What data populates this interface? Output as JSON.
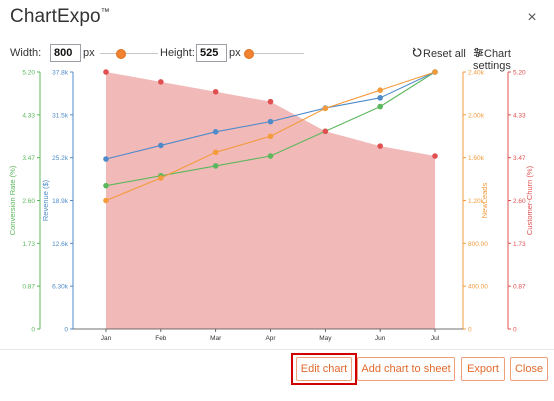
{
  "app": {
    "title": "ChartExpo",
    "trademark": "™",
    "close_glyph": "×"
  },
  "toolbar": {
    "width_label": "Width:",
    "width_value": "800",
    "width_unit": "px",
    "height_label": "Height:",
    "height_value": "525",
    "height_unit": "px",
    "reset_label": "Reset all",
    "settings_label": "Chart settings",
    "reset_icon": "reset-icon",
    "settings_icon": "sliders-icon"
  },
  "colors": {
    "green": "#5cb85c",
    "blue": "#4f8bc9",
    "orange": "#f39b3d",
    "red": "#e05050",
    "area_fill": "#f2b9b9",
    "accent": "#e26a2c",
    "highlight": "#d00000"
  },
  "chart_data": {
    "type": "line",
    "categories": [
      "Jan",
      "Feb",
      "Mar",
      "Apr",
      "May",
      "Jun",
      "Jul"
    ],
    "series": [
      {
        "name": "Conversion Rate (%)",
        "axis": "conv",
        "kind": "line",
        "values": [
          2.9,
          3.1,
          3.3,
          3.5,
          4.0,
          4.5,
          5.2
        ]
      },
      {
        "name": "Revenue ($)",
        "axis": "rev",
        "kind": "line",
        "values": [
          25000,
          27000,
          29000,
          30500,
          32500,
          34000,
          37800
        ]
      },
      {
        "name": "NewLeads",
        "axis": "leads",
        "kind": "line",
        "values": [
          1200,
          1410,
          1650,
          1800,
          2060,
          2230,
          2400
        ]
      },
      {
        "name": "Customer-Churn (%)",
        "axis": "churn",
        "kind": "area",
        "values": [
          5.2,
          5.0,
          4.8,
          4.6,
          4.0,
          3.7,
          3.5
        ]
      }
    ],
    "axes": [
      {
        "id": "conv",
        "label": "Conversion Rate (%)",
        "min": 0,
        "max": 5.2,
        "ticks": [
          "0",
          "0.87",
          "1.73",
          "2.60",
          "3.47",
          "4.33",
          "5.20"
        ],
        "color": "#5cb85c",
        "side": "left"
      },
      {
        "id": "rev",
        "label": "Revenue ($)",
        "min": 0,
        "max": 37800,
        "ticks": [
          "0",
          "6.30k",
          "12.6k",
          "18.9k",
          "25.2k",
          "31.5k",
          "37.8k"
        ],
        "color": "#4f8bc9",
        "side": "left"
      },
      {
        "id": "leads",
        "label": "NewLeads",
        "min": 0,
        "max": 2400,
        "ticks": [
          "0",
          "400.00",
          "800.00",
          "1.20k",
          "1.60k",
          "2.00k",
          "2.40k"
        ],
        "color": "#f39b3d",
        "side": "right"
      },
      {
        "id": "churn",
        "label": "Customer-Churn (%)",
        "min": 0,
        "max": 5.2,
        "ticks": [
          "0",
          "0.87",
          "1.73",
          "2.60",
          "3.47",
          "4.33",
          "5.20"
        ],
        "color": "#e05050",
        "side": "right"
      }
    ]
  },
  "buttons": {
    "edit_chart": "Edit chart",
    "add_chart_to_sheet": "Add chart to sheet",
    "export": "Export",
    "close": "Close"
  }
}
